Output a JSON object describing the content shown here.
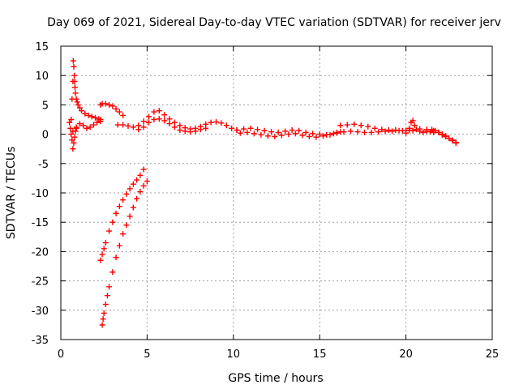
{
  "chart_data": {
    "type": "scatter",
    "title": "Day 069 of 2021, Sidereal Day-to-day VTEC variation (SDTVAR) for receiver jerv",
    "xlabel": "GPS time / hours",
    "ylabel": "SDTVAR / TECUs",
    "xlim": [
      0,
      25
    ],
    "ylim": [
      -35,
      15
    ],
    "xticks": [
      0,
      5,
      10,
      15,
      20,
      25
    ],
    "yticks": [
      15,
      10,
      5,
      0,
      -5,
      -10,
      -15,
      -20,
      -25,
      -30,
      -35
    ],
    "grid": true,
    "marker": "+",
    "color": "#ff0000",
    "series": [
      {
        "name": "SDTVAR",
        "segments": [
          {
            "x": [
              0.6,
              0.65,
              0.7,
              0.72,
              0.75,
              0.78,
              0.8,
              0.82,
              0.85,
              0.9,
              0.95,
              1.0,
              1.1,
              1.2,
              1.4,
              1.6,
              1.8,
              2.0,
              2.2,
              2.3
            ],
            "y": [
              2.5,
              6.0,
              9.0,
              12.5,
              11.5,
              10.0,
              9.0,
              8.0,
              7.0,
              6.0,
              5.5,
              5.0,
              4.5,
              4.0,
              3.5,
              3.2,
              3.0,
              2.8,
              2.6,
              2.5
            ]
          },
          {
            "x": [
              0.5,
              0.55,
              0.6,
              0.65,
              0.7,
              0.75,
              0.8,
              0.85,
              0.9
            ],
            "y": [
              2.0,
              1.0,
              0.0,
              -1.0,
              -2.5,
              -1.5,
              -0.5,
              0.5,
              1.0
            ]
          },
          {
            "x": [
              0.7,
              0.9,
              1.1,
              1.3,
              1.5,
              1.7,
              1.9,
              2.1,
              2.3
            ],
            "y": [
              0.5,
              1.2,
              1.8,
              1.5,
              1.0,
              1.2,
              1.6,
              2.0,
              2.2
            ]
          },
          {
            "x": [
              2.3,
              2.4,
              2.6,
              2.8,
              3.0,
              3.2,
              3.4,
              3.6
            ],
            "y": [
              5.0,
              5.2,
              5.2,
              5.0,
              4.8,
              4.3,
              3.8,
              3.2
            ]
          },
          {
            "x": [
              2.3,
              2.4,
              2.5,
              2.6,
              2.8,
              3.0,
              3.2,
              3.4,
              3.6,
              3.8,
              4.0,
              4.2,
              4.4,
              4.6,
              4.8
            ],
            "y": [
              -21.5,
              -20.5,
              -19.5,
              -18.5,
              -16.5,
              -15.0,
              -13.5,
              -12.3,
              -11.2,
              -10.2,
              -9.3,
              -8.5,
              -7.8,
              -7.0,
              -6.0
            ]
          },
          {
            "x": [
              2.4,
              2.45,
              2.5,
              2.6,
              2.7,
              2.8,
              3.0,
              3.2,
              3.4,
              3.6,
              3.8,
              4.0,
              4.2,
              4.4,
              4.6,
              4.8,
              5.0
            ],
            "y": [
              -32.5,
              -31.5,
              -30.5,
              -29.0,
              -27.5,
              -26.0,
              -23.5,
              -21.0,
              -19.0,
              -17.0,
              -15.5,
              -14.0,
              -12.5,
              -11.0,
              -9.8,
              -8.8,
              -8.0
            ]
          },
          {
            "x": [
              3.3,
              3.6,
              3.9,
              4.2,
              4.5,
              4.8,
              5.1,
              5.4,
              5.7,
              6.0,
              6.3,
              6.6,
              6.9,
              7.2,
              7.5,
              7.8,
              8.1,
              8.4,
              8.7,
              9.0,
              9.3,
              9.6,
              9.9,
              10.2
            ],
            "y": [
              1.6,
              1.6,
              1.4,
              1.2,
              1.5,
              2.2,
              3.0,
              3.8,
              4.0,
              3.3,
              2.6,
              2.0,
              1.5,
              1.1,
              0.9,
              1.0,
              1.3,
              1.7,
              2.0,
              2.1,
              1.9,
              1.5,
              1.0,
              0.7
            ]
          },
          {
            "x": [
              4.5,
              4.8,
              5.1,
              5.4,
              5.7,
              6.0,
              6.3,
              6.6,
              6.9,
              7.2,
              7.5,
              7.8,
              8.1,
              8.4
            ],
            "y": [
              0.8,
              1.2,
              2.0,
              2.5,
              2.6,
              2.3,
              1.8,
              1.2,
              0.7,
              0.5,
              0.4,
              0.5,
              0.8,
              1.0
            ]
          },
          {
            "x": [
              10.2,
              10.6,
              11.0,
              11.4,
              11.8,
              12.2,
              12.6,
              13.0,
              13.4,
              13.8,
              14.2,
              14.6,
              15.0,
              15.4,
              15.8,
              16.2
            ],
            "y": [
              0.7,
              0.9,
              1.0,
              0.8,
              0.6,
              0.4,
              0.3,
              0.5,
              0.7,
              0.6,
              0.3,
              0.1,
              0.0,
              -0.1,
              0.1,
              0.4
            ]
          },
          {
            "x": [
              10.4,
              10.8,
              11.2,
              11.6,
              12.0,
              12.4,
              12.8,
              13.2,
              13.6,
              14.0,
              14.4,
              14.8,
              15.2,
              15.6,
              16.0
            ],
            "y": [
              0.2,
              0.3,
              0.1,
              -0.1,
              -0.3,
              -0.4,
              -0.2,
              0.0,
              0.1,
              -0.2,
              -0.4,
              -0.5,
              -0.3,
              -0.1,
              0.2
            ]
          },
          {
            "x": [
              16.2,
              16.6,
              17.0,
              17.4,
              17.8,
              18.2,
              18.6,
              19.0,
              19.4,
              19.8,
              20.2
            ],
            "y": [
              1.5,
              1.6,
              1.7,
              1.5,
              1.3,
              1.0,
              0.8,
              0.7,
              0.7,
              0.6,
              0.7
            ]
          },
          {
            "x": [
              16.0,
              16.4,
              16.8,
              17.2,
              17.6,
              18.0,
              18.4,
              18.8,
              19.2,
              19.6,
              20.0
            ],
            "y": [
              0.3,
              0.4,
              0.5,
              0.4,
              0.3,
              0.3,
              0.4,
              0.5,
              0.5,
              0.6,
              0.6
            ]
          },
          {
            "x": [
              20.0,
              20.2,
              20.3,
              20.4,
              20.5,
              20.6,
              20.8,
              21.0,
              21.2,
              21.4,
              21.6
            ],
            "y": [
              0.2,
              1.0,
              2.0,
              2.3,
              1.5,
              0.8,
              0.5,
              0.3,
              0.5,
              0.4,
              0.3
            ]
          },
          {
            "x": [
              20.4,
              20.8,
              21.2,
              21.6,
              21.9,
              22.1,
              22.3,
              22.5,
              22.7,
              22.9
            ],
            "y": [
              0.6,
              0.9,
              0.8,
              0.6,
              0.3,
              0.0,
              -0.3,
              -0.7,
              -1.0,
              -1.5
            ]
          },
          {
            "x": [
              21.5,
              21.7,
              21.9,
              22.1,
              22.3,
              22.5,
              22.7,
              22.9
            ],
            "y": [
              0.8,
              0.6,
              0.3,
              -0.1,
              -0.4,
              -0.7,
              -1.1,
              -1.4
            ]
          }
        ]
      }
    ]
  }
}
